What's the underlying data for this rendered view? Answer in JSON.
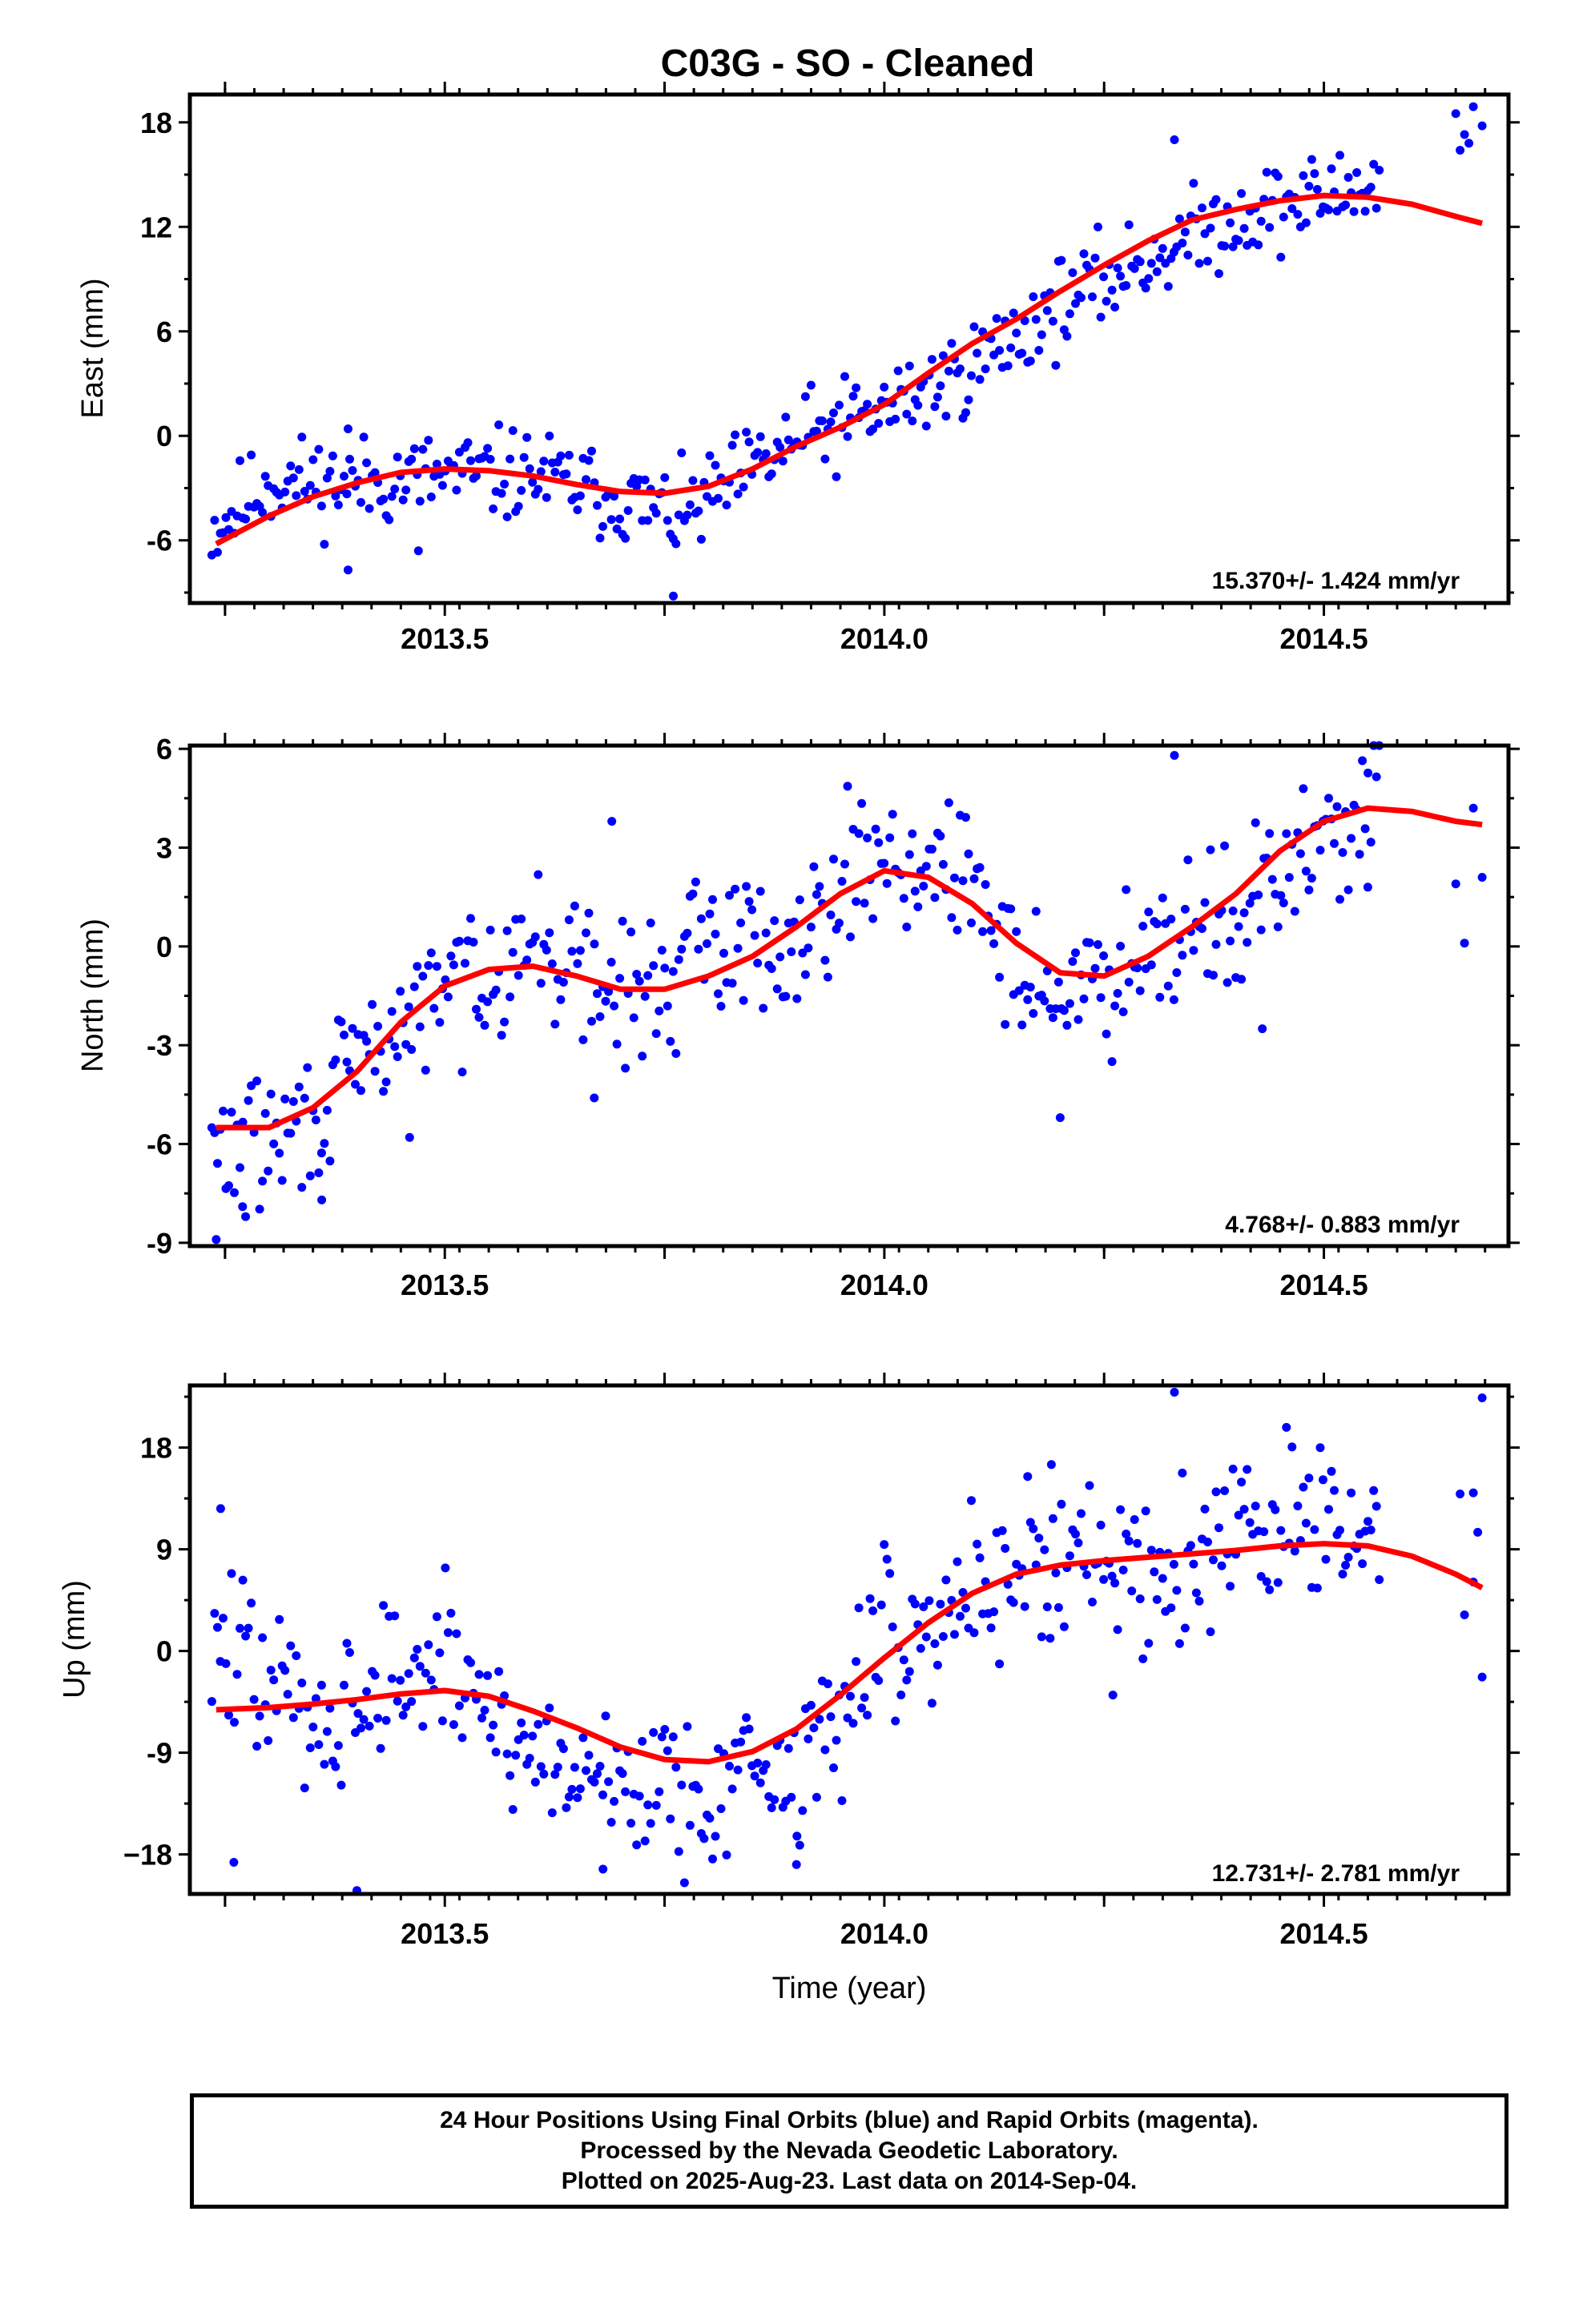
{
  "title": "C03G  - SO - Cleaned",
  "x_axis_label": "Time (year)",
  "footer": {
    "line1": "24 Hour Positions Using Final Orbits (blue) and Rapid Orbits (magenta).",
    "line2": "Processed by the Nevada Geodetic Laboratory.",
    "line3": "Plotted on 2025-Aug-23. Last data on 2014-Sep-04."
  },
  "colors": {
    "data_points": "#0000ff",
    "model_curve": "#ff0000",
    "frame": "#000000"
  },
  "chart_data": [
    {
      "type": "scatter",
      "panel": "east",
      "ylabel": "East (mm)",
      "rate_label": "15.370+/- 1.424 mm/yr",
      "xlim": [
        2013.21,
        2014.71
      ],
      "ylim": [
        -9.6,
        19.6
      ],
      "x_ticks": [
        2013.5,
        2014.0,
        2014.5
      ],
      "x_tick_labels": [
        "2013.5",
        "2014.0",
        "2014.5"
      ],
      "y_ticks": [
        -6,
        0,
        6,
        12,
        18
      ],
      "y_tick_labels": [
        "-6",
        "0",
        "6",
        "12",
        "18"
      ],
      "model_x": [
        2013.24,
        2013.3,
        2013.35,
        2013.4,
        2013.45,
        2013.5,
        2013.55,
        2013.6,
        2013.65,
        2013.7,
        2013.75,
        2013.8,
        2013.85,
        2013.9,
        2013.95,
        2014.0,
        2014.05,
        2014.1,
        2014.15,
        2014.2,
        2014.25,
        2014.3,
        2014.35,
        2014.4,
        2014.45,
        2014.5,
        2014.55,
        2014.6,
        2014.65,
        2014.68
      ],
      "model_y": [
        -6.2,
        -4.6,
        -3.5,
        -2.7,
        -2.1,
        -1.9,
        -2.0,
        -2.3,
        -2.8,
        -3.2,
        -3.3,
        -2.9,
        -1.9,
        -0.6,
        0.5,
        1.8,
        3.6,
        5.3,
        6.7,
        8.3,
        9.8,
        11.2,
        12.4,
        13.0,
        13.5,
        13.8,
        13.7,
        13.3,
        12.6,
        12.2
      ],
      "anchors": [
        [
          2013.24,
          -5.2
        ],
        [
          2013.3,
          -2.6
        ],
        [
          2013.4,
          -2.7
        ],
        [
          2013.5,
          -2.3
        ],
        [
          2013.6,
          -2.2
        ],
        [
          2013.7,
          -3.6
        ],
        [
          2013.77,
          -4.7
        ],
        [
          2013.85,
          -2.0
        ],
        [
          2013.9,
          -0.3
        ],
        [
          2014.0,
          1.5
        ],
        [
          2014.08,
          3.4
        ],
        [
          2014.15,
          5.7
        ],
        [
          2014.2,
          7.6
        ],
        [
          2014.3,
          10.2
        ],
        [
          2014.4,
          12.6
        ],
        [
          2014.5,
          13.7
        ],
        [
          2014.56,
          14.6
        ]
      ],
      "scatter_amp": 1.3,
      "extra_points": [
        [
          2014.65,
          18.5
        ],
        [
          2014.66,
          17.3
        ],
        [
          2014.67,
          18.9
        ],
        [
          2014.68,
          17.8
        ],
        [
          2014.655,
          16.4
        ],
        [
          2014.665,
          16.8
        ],
        [
          2013.76,
          -9.2
        ],
        [
          2013.39,
          -7.7
        ],
        [
          2013.47,
          -6.6
        ],
        [
          2014.33,
          17.0
        ],
        [
          2013.39,
          0.4
        ]
      ]
    },
    {
      "type": "scatter",
      "panel": "north",
      "ylabel": "North (mm)",
      "rate_label": "4.768+/- 0.883 mm/yr",
      "xlim": [
        2013.21,
        2014.71
      ],
      "ylim": [
        -9.1,
        6.1
      ],
      "x_ticks": [
        2013.5,
        2014.0,
        2014.5
      ],
      "x_tick_labels": [
        "2013.5",
        "2014.0",
        "2014.5"
      ],
      "y_ticks": [
        -9,
        -6,
        -3,
        0,
        3,
        6
      ],
      "y_tick_labels": [
        "-9",
        "-6",
        "-3",
        "0",
        "3",
        "6"
      ],
      "model_x": [
        2013.24,
        2013.3,
        2013.35,
        2013.4,
        2013.45,
        2013.5,
        2013.55,
        2013.6,
        2013.65,
        2013.7,
        2013.75,
        2013.8,
        2013.85,
        2013.9,
        2013.95,
        2014.0,
        2014.05,
        2014.1,
        2014.15,
        2014.2,
        2014.25,
        2014.3,
        2014.35,
        2014.4,
        2014.45,
        2014.5,
        2014.55,
        2014.6,
        2014.65,
        2014.68
      ],
      "model_y": [
        -5.5,
        -5.5,
        -4.9,
        -3.8,
        -2.3,
        -1.2,
        -0.7,
        -0.6,
        -0.9,
        -1.3,
        -1.3,
        -0.9,
        -0.3,
        0.6,
        1.6,
        2.3,
        2.1,
        1.3,
        0.1,
        -0.8,
        -0.9,
        -0.3,
        0.6,
        1.6,
        2.9,
        3.8,
        4.2,
        4.1,
        3.8,
        3.7
      ],
      "anchors": [
        [
          2013.24,
          -6.2
        ],
        [
          2013.3,
          -6.0
        ],
        [
          2013.35,
          -5.3
        ],
        [
          2013.4,
          -3.7
        ],
        [
          2013.45,
          -2.4
        ],
        [
          2013.5,
          -1.4
        ],
        [
          2013.55,
          -0.5
        ],
        [
          2013.6,
          0.1
        ],
        [
          2013.65,
          -0.7
        ],
        [
          2013.7,
          -1.6
        ],
        [
          2013.75,
          -1.2
        ],
        [
          2013.8,
          0.4
        ],
        [
          2013.85,
          0.1
        ],
        [
          2013.9,
          0.2
        ],
        [
          2013.95,
          2.2
        ],
        [
          2014.0,
          2.9
        ],
        [
          2014.05,
          2.3
        ],
        [
          2014.1,
          1.9
        ],
        [
          2014.15,
          -0.6
        ],
        [
          2014.2,
          -1.6
        ],
        [
          2014.25,
          -1.1
        ],
        [
          2014.3,
          0.4
        ],
        [
          2014.35,
          0.8
        ],
        [
          2014.4,
          0.9
        ],
        [
          2014.45,
          1.8
        ],
        [
          2014.5,
          3.4
        ],
        [
          2014.56,
          4.3
        ]
      ],
      "scatter_amp": 1.05,
      "extra_points": [
        [
          2013.24,
          -8.9
        ],
        [
          2013.27,
          -7.9
        ],
        [
          2013.36,
          -7.7
        ],
        [
          2014.33,
          5.8
        ],
        [
          2013.69,
          3.8
        ],
        [
          2014.2,
          -5.2
        ],
        [
          2014.43,
          -2.5
        ],
        [
          2014.55,
          1.8
        ],
        [
          2014.66,
          0.1
        ],
        [
          2014.67,
          4.2
        ],
        [
          2014.68,
          2.1
        ],
        [
          2014.65,
          1.9
        ],
        [
          2013.67,
          -4.6
        ],
        [
          2013.46,
          -5.8
        ]
      ]
    },
    {
      "type": "scatter",
      "panel": "up",
      "ylabel": "Up (mm)",
      "rate_label": "12.731+/- 2.781 mm/yr",
      "xlim": [
        2013.21,
        2014.71
      ],
      "ylim": [
        -21.5,
        23.5
      ],
      "x_ticks": [
        2013.5,
        2014.0,
        2014.5
      ],
      "x_tick_labels": [
        "2013.5",
        "2014.0",
        "2014.5"
      ],
      "y_ticks": [
        -18,
        -9,
        0,
        9,
        18
      ],
      "y_tick_labels": [
        "−18",
        "-9",
        "0",
        "9",
        "18"
      ],
      "model_x": [
        2013.24,
        2013.3,
        2013.35,
        2013.4,
        2013.45,
        2013.5,
        2013.55,
        2013.6,
        2013.65,
        2013.7,
        2013.75,
        2013.8,
        2013.85,
        2013.9,
        2013.95,
        2014.0,
        2014.05,
        2014.1,
        2014.15,
        2014.2,
        2014.25,
        2014.3,
        2014.35,
        2014.4,
        2014.45,
        2014.5,
        2014.55,
        2014.6,
        2014.65,
        2014.68
      ],
      "model_y": [
        -5.2,
        -5.0,
        -4.7,
        -4.3,
        -3.8,
        -3.5,
        -4.0,
        -5.3,
        -6.8,
        -8.5,
        -9.6,
        -9.8,
        -8.9,
        -6.9,
        -3.9,
        -0.6,
        2.5,
        5.1,
        6.8,
        7.6,
        8.0,
        8.3,
        8.6,
        8.9,
        9.3,
        9.5,
        9.3,
        8.4,
        6.8,
        5.6
      ],
      "anchors": [
        [
          2013.24,
          0.6
        ],
        [
          2013.3,
          -3.0
        ],
        [
          2013.35,
          -5.3
        ],
        [
          2013.4,
          -4.8
        ],
        [
          2013.45,
          -2.0
        ],
        [
          2013.5,
          -1.6
        ],
        [
          2013.55,
          -4.5
        ],
        [
          2013.6,
          -9.0
        ],
        [
          2013.65,
          -10.8
        ],
        [
          2013.7,
          -10.9
        ],
        [
          2013.75,
          -12.3
        ],
        [
          2013.8,
          -12.0
        ],
        [
          2013.85,
          -10.4
        ],
        [
          2013.9,
          -11.4
        ],
        [
          2013.95,
          -5.0
        ],
        [
          2014.0,
          1.2
        ],
        [
          2014.05,
          2.0
        ],
        [
          2014.1,
          5.6
        ],
        [
          2014.15,
          8.2
        ],
        [
          2014.2,
          7.4
        ],
        [
          2014.25,
          8.6
        ],
        [
          2014.3,
          7.4
        ],
        [
          2014.35,
          8.0
        ],
        [
          2014.4,
          10.4
        ],
        [
          2014.45,
          11.8
        ],
        [
          2014.5,
          10.6
        ],
        [
          2014.56,
          9.9
        ]
      ],
      "scatter_amp": 3.6,
      "extra_points": [
        [
          2014.33,
          22.9
        ],
        [
          2014.68,
          22.4
        ],
        [
          2013.4,
          -21.2
        ],
        [
          2013.26,
          -18.7
        ],
        [
          2013.9,
          -18.9
        ],
        [
          2013.68,
          -19.3
        ],
        [
          2013.245,
          12.6
        ],
        [
          2014.68,
          -2.3
        ],
        [
          2014.66,
          3.2
        ],
        [
          2014.67,
          14.0
        ],
        [
          2014.655,
          13.9
        ],
        [
          2014.675,
          10.5
        ],
        [
          2014.67,
          6.1
        ],
        [
          2014.26,
          -3.9
        ],
        [
          2014.19,
          16.5
        ]
      ]
    }
  ]
}
